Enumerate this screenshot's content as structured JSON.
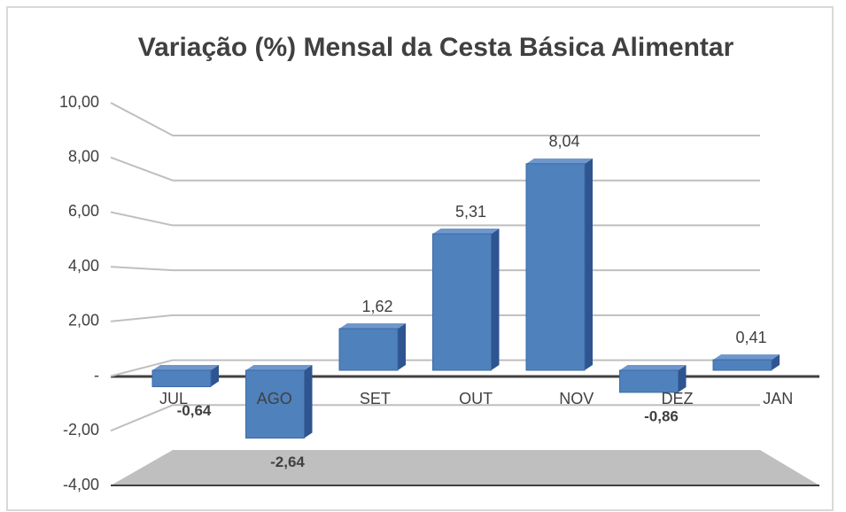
{
  "chart_data": {
    "type": "bar",
    "title": "Variação (%) Mensal da Cesta Básica Alimentar",
    "categories": [
      "JUL",
      "AGO",
      "SET",
      "OUT",
      "NOV",
      "DEZ",
      "JAN"
    ],
    "values": [
      -0.64,
      -2.64,
      1.62,
      5.31,
      8.04,
      -0.86,
      0.41
    ],
    "value_labels": [
      "-0,64",
      "-2,64",
      "1,62",
      "5,31",
      "8,04",
      "-0,86",
      "0,41"
    ],
    "color": "#4f81bd",
    "ylim": [
      -4,
      10
    ],
    "yticks": [
      {
        "value": -4,
        "label": "-4,00"
      },
      {
        "value": -2,
        "label": "-2,00"
      },
      {
        "value": 0,
        "label": "-"
      },
      {
        "value": 2,
        "label": "2,00"
      },
      {
        "value": 4,
        "label": "4,00"
      },
      {
        "value": 6,
        "label": "6,00"
      },
      {
        "value": 8,
        "label": "8,00"
      },
      {
        "value": 10,
        "label": "10,00"
      }
    ],
    "grid": true
  }
}
